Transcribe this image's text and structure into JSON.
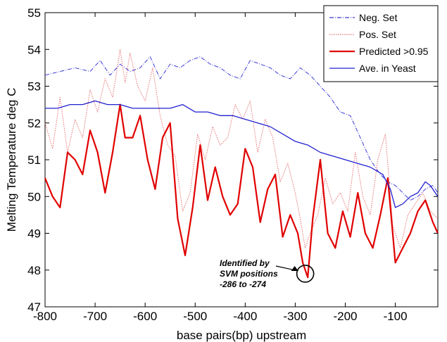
{
  "chart_data": {
    "type": "line",
    "xlabel": "base pairs(bp) upstream",
    "ylabel": "Melting Temperature deg C",
    "xlim": [
      -800,
      -15
    ],
    "ylim": [
      47,
      55
    ],
    "xticks": [
      -800,
      -700,
      -600,
      -500,
      -400,
      -300,
      -200,
      -100
    ],
    "yticks": [
      47,
      48,
      49,
      50,
      51,
      52,
      53,
      54,
      55
    ],
    "grid": false,
    "legend_position": "top-right",
    "series": [
      {
        "name": "Neg. Set",
        "color": "#3b3bd6",
        "style": "dash-dot",
        "x": [
          -800,
          -770,
          -740,
          -710,
          -690,
          -670,
          -650,
          -630,
          -610,
          -590,
          -570,
          -550,
          -530,
          -510,
          -490,
          -470,
          -450,
          -430,
          -410,
          -390,
          -370,
          -350,
          -330,
          -310,
          -290,
          -270,
          -250,
          -230,
          -210,
          -190,
          -170,
          -150,
          -130,
          -115,
          -100,
          -85,
          -70,
          -55,
          -40,
          -25,
          -15
        ],
        "y": [
          53.3,
          53.4,
          53.5,
          53.4,
          53.7,
          53.3,
          53.6,
          53.4,
          53.5,
          53.8,
          53.2,
          53.6,
          53.5,
          53.7,
          53.8,
          53.6,
          53.5,
          53.3,
          53.2,
          53.7,
          53.6,
          53.5,
          53.3,
          53.2,
          53.5,
          53.3,
          53.0,
          52.7,
          52.3,
          52.2,
          51.6,
          51.0,
          50.6,
          50.4,
          50.3,
          50.1,
          49.9,
          50.0,
          50.2,
          50.3,
          50.1
        ]
      },
      {
        "name": "Pos. Set",
        "color": "#e57373",
        "style": "dotted",
        "x": [
          -800,
          -785,
          -770,
          -755,
          -740,
          -725,
          -710,
          -695,
          -680,
          -665,
          -650,
          -640,
          -630,
          -615,
          -600,
          -585,
          -570,
          -555,
          -540,
          -525,
          -510,
          -495,
          -480,
          -465,
          -450,
          -435,
          -420,
          -405,
          -390,
          -375,
          -360,
          -345,
          -330,
          -315,
          -300,
          -290,
          -280,
          -270,
          -255,
          -240,
          -225,
          -210,
          -195,
          -180,
          -165,
          -150,
          -135,
          -120,
          -105,
          -90,
          -75,
          -60,
          -45,
          -30,
          -15
        ],
        "y": [
          52.0,
          51.3,
          52.7,
          51.2,
          52.1,
          51.6,
          52.9,
          52.3,
          53.2,
          52.7,
          54.0,
          53.1,
          53.9,
          53.0,
          52.6,
          53.5,
          52.2,
          51.4,
          51.1,
          49.6,
          50.1,
          51.7,
          51.0,
          51.9,
          51.4,
          51.6,
          52.5,
          52.1,
          52.6,
          51.2,
          52.1,
          51.6,
          50.4,
          50.9,
          50.1,
          49.4,
          48.6,
          49.0,
          49.5,
          50.5,
          49.8,
          50.1,
          49.6,
          51.2,
          50.0,
          49.5,
          51.0,
          51.7,
          49.2,
          48.6,
          49.5,
          49.8,
          50.1,
          49.6,
          49.4
        ]
      },
      {
        "name": "Predicted >0.95",
        "color": "#e00000",
        "style": "solid",
        "x": [
          -800,
          -785,
          -770,
          -755,
          -740,
          -725,
          -710,
          -695,
          -680,
          -665,
          -650,
          -640,
          -625,
          -610,
          -595,
          -580,
          -565,
          -550,
          -535,
          -520,
          -505,
          -490,
          -475,
          -460,
          -445,
          -430,
          -415,
          -400,
          -385,
          -370,
          -355,
          -340,
          -325,
          -310,
          -295,
          -285,
          -275,
          -265,
          -250,
          -235,
          -220,
          -205,
          -190,
          -175,
          -160,
          -145,
          -130,
          -115,
          -100,
          -85,
          -70,
          -55,
          -40,
          -25,
          -15
        ],
        "y": [
          50.5,
          50.0,
          49.7,
          51.2,
          51.0,
          50.6,
          51.8,
          51.2,
          50.1,
          51.2,
          52.5,
          51.6,
          51.6,
          52.2,
          51.0,
          50.2,
          51.6,
          52.0,
          49.4,
          48.4,
          49.7,
          51.4,
          49.9,
          50.8,
          50.0,
          49.5,
          49.8,
          51.3,
          50.8,
          49.3,
          50.2,
          50.6,
          48.9,
          49.5,
          49.0,
          48.2,
          47.8,
          49.4,
          51.0,
          49.0,
          48.6,
          49.6,
          48.9,
          50.1,
          49.0,
          48.6,
          49.5,
          50.5,
          48.2,
          48.6,
          49.0,
          49.6,
          49.9,
          49.3,
          49.0
        ]
      },
      {
        "name": "Ave. in Yeast",
        "color": "#2020d0",
        "style": "solid",
        "x": [
          -800,
          -775,
          -750,
          -725,
          -700,
          -675,
          -650,
          -625,
          -600,
          -575,
          -550,
          -525,
          -500,
          -475,
          -450,
          -425,
          -400,
          -375,
          -350,
          -325,
          -300,
          -275,
          -250,
          -225,
          -200,
          -175,
          -150,
          -125,
          -110,
          -100,
          -85,
          -70,
          -55,
          -40,
          -30,
          -15
        ],
        "y": [
          52.4,
          52.4,
          52.5,
          52.5,
          52.6,
          52.5,
          52.5,
          52.4,
          52.4,
          52.4,
          52.4,
          52.5,
          52.3,
          52.3,
          52.2,
          52.2,
          52.1,
          52.0,
          51.9,
          51.7,
          51.5,
          51.4,
          51.2,
          51.1,
          51.0,
          50.9,
          50.8,
          50.6,
          50.2,
          49.7,
          49.8,
          50.0,
          50.1,
          50.4,
          50.3,
          50.0
        ]
      }
    ],
    "annotation": {
      "lines": [
        "Identified by",
        "SVM positions",
        "-286 to -274"
      ],
      "target_x": -280,
      "target_y": 47.9
    }
  }
}
